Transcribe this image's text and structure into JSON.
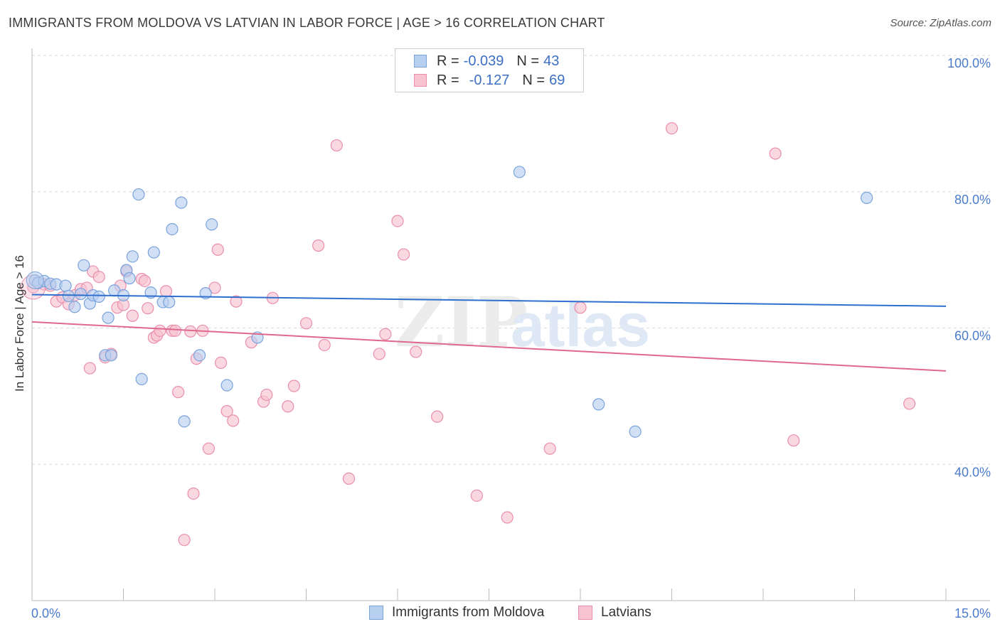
{
  "title": "IMMIGRANTS FROM MOLDOVA VS LATVIAN IN LABOR FORCE | AGE > 16 CORRELATION CHART",
  "source": "Source: ZipAtlas.com",
  "watermark": {
    "zip": "ZIP",
    "atlas": "atlas"
  },
  "legend": {
    "rows": [
      {
        "r_label": "R =",
        "r_value": "-0.039",
        "n_label": "N =",
        "n_value": "43"
      },
      {
        "r_label": "R =",
        "r_value": "-0.127",
        "n_label": "N =",
        "n_value": "69"
      }
    ]
  },
  "colors": {
    "blue_fill": "#b8d0f0",
    "blue_stroke": "#7aa3dc",
    "blue_line": "#2f6fd0",
    "pink_fill": "#f7c3d3",
    "pink_stroke": "#e98fab",
    "pink_line": "#e0688e",
    "axis_text": "#4a7ccc",
    "grid": "#d8d8d8"
  },
  "chart_data": {
    "type": "scatter",
    "title": "IMMIGRANTS FROM MOLDOVA VS LATVIAN IN LABOR FORCE | AGE > 16 CORRELATION CHART",
    "xlabel": "",
    "ylabel": "In Labor Force | Age > 16",
    "xlim": [
      0,
      15
    ],
    "ylim": [
      20,
      100
    ],
    "x_tick_labels": [
      "0.0%",
      "15.0%"
    ],
    "y_ticks": [
      40,
      60,
      80,
      100
    ],
    "y_tick_labels": [
      "40.0%",
      "60.0%",
      "80.0%",
      "100.0%"
    ],
    "grid": true,
    "series": [
      {
        "name": "Immigrants from Moldova",
        "color": "blue",
        "points": [
          [
            0.05,
            67.0
          ],
          [
            0.1,
            66.6
          ],
          [
            0.2,
            66.9
          ],
          [
            0.3,
            66.5
          ],
          [
            0.4,
            66.4
          ],
          [
            0.55,
            66.2
          ],
          [
            0.6,
            64.7
          ],
          [
            0.7,
            63.1
          ],
          [
            0.8,
            65.0
          ],
          [
            0.85,
            69.2
          ],
          [
            0.95,
            63.6
          ],
          [
            1.0,
            64.8
          ],
          [
            1.1,
            64.6
          ],
          [
            1.2,
            56.0
          ],
          [
            1.25,
            61.5
          ],
          [
            1.3,
            56.0
          ],
          [
            1.35,
            65.5
          ],
          [
            1.5,
            64.8
          ],
          [
            1.55,
            68.5
          ],
          [
            1.6,
            67.3
          ],
          [
            1.65,
            70.5
          ],
          [
            1.75,
            79.6
          ],
          [
            1.8,
            52.5
          ],
          [
            1.95,
            65.2
          ],
          [
            2.0,
            71.1
          ],
          [
            2.15,
            63.8
          ],
          [
            2.25,
            63.8
          ],
          [
            2.3,
            74.5
          ],
          [
            2.45,
            78.4
          ],
          [
            2.5,
            46.3
          ],
          [
            2.75,
            56.0
          ],
          [
            2.85,
            65.1
          ],
          [
            2.95,
            75.2
          ],
          [
            3.2,
            51.6
          ],
          [
            3.7,
            58.6
          ],
          [
            8.0,
            82.9
          ],
          [
            9.3,
            48.8
          ],
          [
            9.9,
            44.8
          ],
          [
            13.7,
            79.1
          ]
        ],
        "trend": {
          "x": [
            0,
            15
          ],
          "y": [
            64.9,
            63.2
          ]
        }
      },
      {
        "name": "Latvians",
        "color": "pink",
        "points": [
          [
            0.02,
            66.0
          ],
          [
            0.1,
            66.7
          ],
          [
            0.2,
            66.4
          ],
          [
            0.3,
            66.2
          ],
          [
            0.4,
            63.9
          ],
          [
            0.5,
            64.5
          ],
          [
            0.6,
            63.5
          ],
          [
            0.7,
            64.8
          ],
          [
            0.8,
            65.7
          ],
          [
            0.9,
            65.9
          ],
          [
            0.95,
            54.1
          ],
          [
            1.0,
            68.3
          ],
          [
            1.1,
            67.5
          ],
          [
            1.2,
            55.7
          ],
          [
            1.3,
            56.2
          ],
          [
            1.4,
            63.0
          ],
          [
            1.45,
            66.2
          ],
          [
            1.5,
            63.4
          ],
          [
            1.55,
            68.3
          ],
          [
            1.65,
            61.8
          ],
          [
            1.8,
            67.2
          ],
          [
            1.85,
            66.9
          ],
          [
            1.9,
            62.9
          ],
          [
            2.0,
            58.6
          ],
          [
            2.05,
            58.9
          ],
          [
            2.1,
            59.6
          ],
          [
            2.2,
            65.4
          ],
          [
            2.3,
            59.6
          ],
          [
            2.35,
            59.6
          ],
          [
            2.4,
            50.6
          ],
          [
            2.5,
            28.9
          ],
          [
            2.6,
            59.5
          ],
          [
            2.65,
            35.7
          ],
          [
            2.7,
            55.5
          ],
          [
            2.8,
            59.6
          ],
          [
            2.9,
            42.3
          ],
          [
            3.0,
            65.9
          ],
          [
            3.05,
            71.5
          ],
          [
            3.1,
            54.9
          ],
          [
            3.2,
            47.8
          ],
          [
            3.3,
            46.4
          ],
          [
            3.35,
            63.9
          ],
          [
            3.6,
            57.9
          ],
          [
            3.8,
            49.2
          ],
          [
            3.85,
            50.2
          ],
          [
            3.95,
            64.4
          ],
          [
            4.2,
            48.5
          ],
          [
            4.3,
            51.5
          ],
          [
            4.5,
            60.7
          ],
          [
            4.7,
            72.1
          ],
          [
            4.8,
            57.5
          ],
          [
            5.0,
            86.8
          ],
          [
            5.2,
            37.9
          ],
          [
            5.7,
            56.2
          ],
          [
            5.8,
            59.1
          ],
          [
            6.0,
            75.7
          ],
          [
            6.1,
            70.8
          ],
          [
            6.3,
            56.5
          ],
          [
            6.65,
            47.0
          ],
          [
            7.3,
            35.4
          ],
          [
            7.8,
            32.2
          ],
          [
            8.5,
            42.3
          ],
          [
            9.0,
            63.0
          ],
          [
            10.5,
            89.3
          ],
          [
            12.2,
            85.6
          ],
          [
            12.5,
            43.5
          ],
          [
            14.4,
            48.9
          ]
        ],
        "trend": {
          "x": [
            0,
            15
          ],
          "y": [
            60.9,
            53.7
          ]
        }
      }
    ]
  },
  "bottom_legend": [
    "Immigrants from Moldova",
    "Latvians"
  ]
}
